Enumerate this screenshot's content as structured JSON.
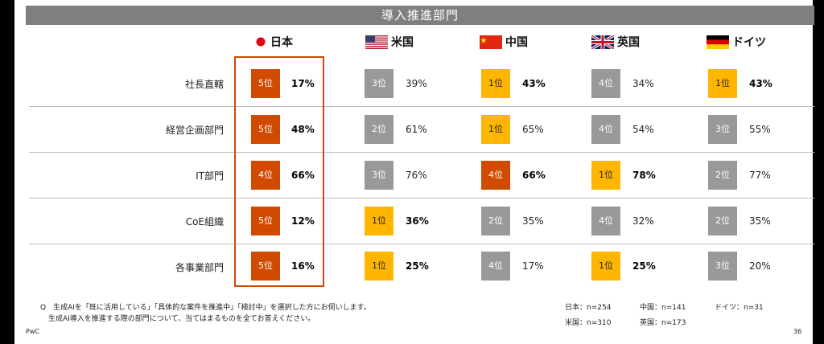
{
  "title": "導入推進部門",
  "colors": {
    "rank5": "#d04a02",
    "rank4_jp": "#d04a02",
    "gray": "#999999",
    "yellow": "#ffb600",
    "china_red": "#d04a02"
  },
  "countries": [
    {
      "name": "日本",
      "flag": "japan-flag-icon"
    },
    {
      "name": "米国",
      "flag": "usa-flag-icon"
    },
    {
      "name": "中国",
      "flag": "china-flag-icon"
    },
    {
      "name": "英国",
      "flag": "uk-flag-icon"
    },
    {
      "name": "ドイツ",
      "flag": "germany-flag-icon"
    }
  ],
  "rows": [
    {
      "label": "社長直轄",
      "cells": [
        {
          "rank": "5位",
          "pct": "17%",
          "color": "#d04a02",
          "bold": true
        },
        {
          "rank": "3位",
          "pct": "39%",
          "color": "#999999",
          "bold": false
        },
        {
          "rank": "1位",
          "pct": "43%",
          "color": "#ffb600",
          "bold": true
        },
        {
          "rank": "4位",
          "pct": "34%",
          "color": "#999999",
          "bold": false
        },
        {
          "rank": "1位",
          "pct": "43%",
          "color": "#ffb600",
          "bold": true
        }
      ]
    },
    {
      "label": "経営企画部門",
      "cells": [
        {
          "rank": "5位",
          "pct": "48%",
          "color": "#d04a02",
          "bold": true
        },
        {
          "rank": "2位",
          "pct": "61%",
          "color": "#999999",
          "bold": false
        },
        {
          "rank": "1位",
          "pct": "65%",
          "color": "#ffb600",
          "bold": false
        },
        {
          "rank": "4位",
          "pct": "54%",
          "color": "#999999",
          "bold": false
        },
        {
          "rank": "3位",
          "pct": "55%",
          "color": "#999999",
          "bold": false
        }
      ]
    },
    {
      "label": "IT部門",
      "cells": [
        {
          "rank": "4位",
          "pct": "66%",
          "color": "#d04a02",
          "bold": true
        },
        {
          "rank": "3位",
          "pct": "76%",
          "color": "#999999",
          "bold": false
        },
        {
          "rank": "4位",
          "pct": "66%",
          "color": "#d04a02",
          "bold": true
        },
        {
          "rank": "1位",
          "pct": "78%",
          "color": "#ffb600",
          "bold": true
        },
        {
          "rank": "2位",
          "pct": "77%",
          "color": "#999999",
          "bold": false
        }
      ]
    },
    {
      "label": "CoE組織",
      "cells": [
        {
          "rank": "5位",
          "pct": "12%",
          "color": "#d04a02",
          "bold": true
        },
        {
          "rank": "1位",
          "pct": "36%",
          "color": "#ffb600",
          "bold": true
        },
        {
          "rank": "2位",
          "pct": "35%",
          "color": "#999999",
          "bold": false
        },
        {
          "rank": "4位",
          "pct": "32%",
          "color": "#999999",
          "bold": false
        },
        {
          "rank": "2位",
          "pct": "35%",
          "color": "#999999",
          "bold": false
        }
      ]
    },
    {
      "label": "各事業部門",
      "cells": [
        {
          "rank": "5位",
          "pct": "16%",
          "color": "#d04a02",
          "bold": true
        },
        {
          "rank": "1位",
          "pct": "25%",
          "color": "#ffb600",
          "bold": true
        },
        {
          "rank": "4位",
          "pct": "17%",
          "color": "#999999",
          "bold": false
        },
        {
          "rank": "1位",
          "pct": "25%",
          "color": "#ffb600",
          "bold": true
        },
        {
          "rank": "3位",
          "pct": "20%",
          "color": "#999999",
          "bold": false
        }
      ]
    }
  ],
  "footnote": {
    "line1": "Q　生成AIを「既に活用している」「具体的な案件を推進中」「検討中」を選択した方にお伺いします。",
    "line2": "生成AI導入を推進する際の部門について、当てはまるものを全てお答えください。"
  },
  "samples": {
    "jp": "日本：n=254",
    "cn": "中国：n=141",
    "de": "ドイツ：n=31",
    "us": "米国：n=310",
    "uk": "英国：n=173"
  },
  "logo": "PwC",
  "page": "36"
}
